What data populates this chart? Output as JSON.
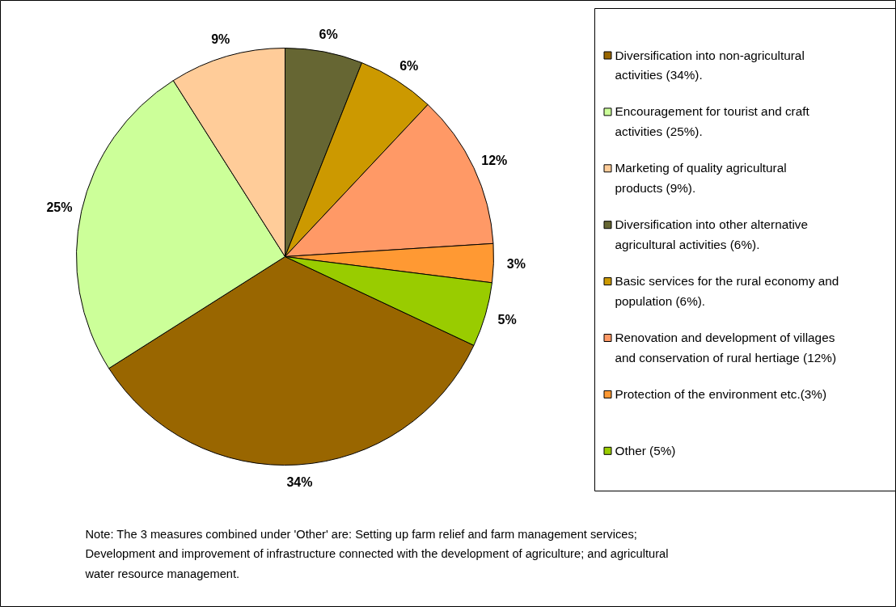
{
  "chart_data": {
    "type": "pie",
    "categories": [
      "Diversification into non-agricultural activities (34%).",
      "Encouragement for tourist and craft activities (25%).",
      "Marketing of quality agricultural products (9%).",
      "Diversification into other alternative agricultural activities (6%).",
      "Basic services for the rural economy and population (6%).",
      "Renovation and development of villages and conservation of rural hertiage (12%)",
      "Protection of the environment etc.(3%)",
      "Other (5%)"
    ],
    "values": [
      34,
      25,
      9,
      6,
      6,
      12,
      3,
      5
    ],
    "colors": [
      "#996600",
      "#ccff99",
      "#ffcc99",
      "#666633",
      "#cc9900",
      "#ff9966",
      "#ff9933",
      "#99cc00"
    ],
    "value_labels": [
      "34%",
      "25%",
      "9%",
      "6%",
      "6%",
      "12%",
      "3%",
      "5%"
    ],
    "legend": "right",
    "annotations": [
      "Note: The 3 measures combined under 'Other' are: Setting up farm relief and farm management services; Development and improvement of infrastructure connected with the development of agriculture; and agricultural water resource management."
    ]
  }
}
